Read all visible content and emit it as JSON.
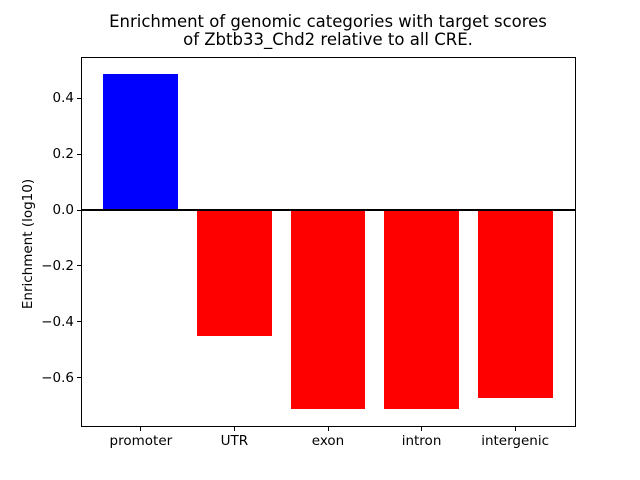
{
  "chart_data": {
    "type": "bar",
    "title": "Enrichment of genomic categories with target scores\nof Zbtb33_Chd2 relative to all CRE.",
    "xlabel": "",
    "ylabel": "Enrichment (log10)",
    "categories": [
      "promoter",
      "UTR",
      "exon",
      "intron",
      "intergenic"
    ],
    "values": [
      0.487,
      -0.451,
      -0.713,
      -0.713,
      -0.674
    ],
    "colors": [
      "#0000ff",
      "#ff0000",
      "#ff0000",
      "#ff0000",
      "#ff0000"
    ],
    "ylim": [
      -0.773,
      0.548
    ],
    "yticks": [
      {
        "value": 0.4,
        "label": "0.4"
      },
      {
        "value": 0.2,
        "label": "0.2"
      },
      {
        "value": 0.0,
        "label": "0.0"
      },
      {
        "value": -0.2,
        "label": "−0.2"
      },
      {
        "value": -0.4,
        "label": "−0.4"
      },
      {
        "value": -0.6,
        "label": "−0.6"
      }
    ],
    "zero_line": true,
    "zero_line_color": "#000000",
    "grid": false,
    "legend": null,
    "background_color": "#ffffff"
  }
}
